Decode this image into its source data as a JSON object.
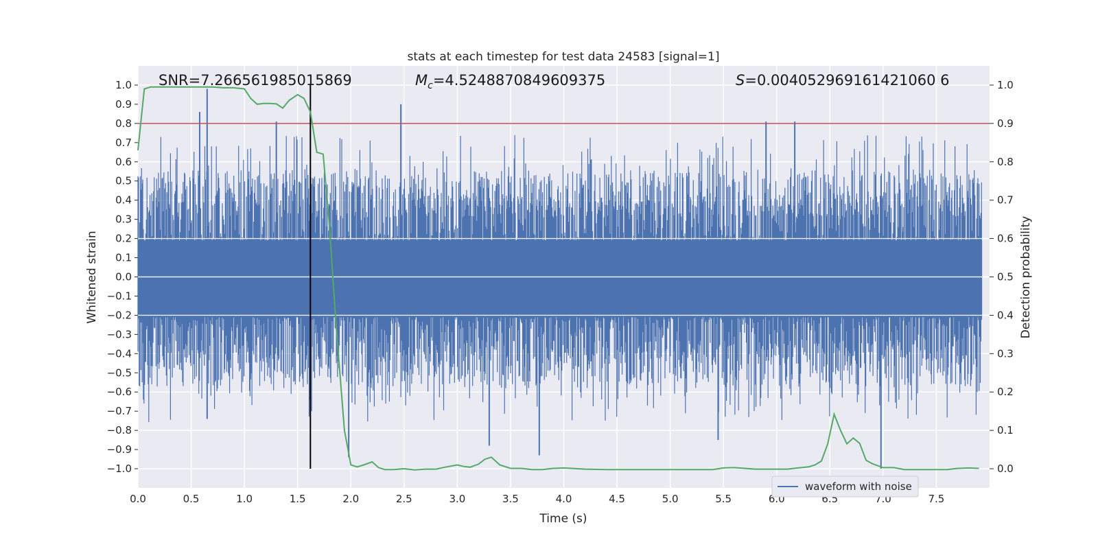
{
  "chart_data": {
    "type": "line",
    "title": "stats at each timestep for test data 24583 [signal=1]",
    "xlabel": "Time (s)",
    "ylabel": "Whitened strain",
    "y2label": "Detection probability",
    "xlim": [
      0.0,
      8.0
    ],
    "ylim": [
      -1.1,
      1.1
    ],
    "y2lim": [
      -0.05,
      1.05
    ],
    "xticks": [
      "0.0",
      "0.5",
      "1.0",
      "1.5",
      "2.0",
      "2.5",
      "3.0",
      "3.5",
      "4.0",
      "4.5",
      "5.0",
      "5.5",
      "6.0",
      "6.5",
      "7.0",
      "7.5"
    ],
    "yticks": [
      "1.0",
      "0.9",
      "0.8",
      "0.7",
      "0.6",
      "0.5",
      "0.4",
      "0.3",
      "0.2",
      "0.1",
      "0.0",
      "−0.1",
      "−0.2",
      "−0.3",
      "−0.4",
      "−0.5",
      "−0.6",
      "−0.7",
      "−0.8",
      "−0.9",
      "−1.0"
    ],
    "y2ticks": [
      "1.0",
      "0.9",
      "0.8",
      "0.7",
      "0.6",
      "0.5",
      "0.4",
      "0.3",
      "0.2",
      "0.1",
      "0.0"
    ],
    "annotations": {
      "snr": "SNR=7.266561985015869",
      "mc_symbol": "M",
      "mc_sub": "c",
      "mc_value": "=4.5248870849609375",
      "s_symbol": "S",
      "s_value": "=0.004052969161421060 6"
    },
    "threshold": {
      "y2": 0.9,
      "color": "#c44e52"
    },
    "event_marker": {
      "x": 1.62,
      "ymin": -1.0,
      "ymax": 1.0,
      "color": "#000000"
    },
    "legend": {
      "label": "waveform with noise",
      "placement": "lower-right"
    },
    "waveform": {
      "name": "waveform with noise",
      "color": "#4c72b0",
      "band": [
        -0.21,
        0.19
      ],
      "spike_extent": [
        -1.0,
        0.98
      ],
      "notable_peaks": [
        {
          "t": 0.65,
          "v": 0.98
        },
        {
          "t": 0.58,
          "v": 0.86
        },
        {
          "t": 2.47,
          "v": 0.9
        },
        {
          "t": 5.9,
          "v": 0.81
        },
        {
          "t": 6.17,
          "v": 0.81
        },
        {
          "t": 1.3,
          "v": 0.81
        },
        {
          "t": 0.65,
          "v": -0.74
        },
        {
          "t": 1.98,
          "v": -0.94
        },
        {
          "t": 3.77,
          "v": -0.93
        },
        {
          "t": 6.98,
          "v": -1.0
        },
        {
          "t": 3.3,
          "v": -0.88
        },
        {
          "t": 5.45,
          "v": -0.85
        }
      ]
    },
    "detection_probability": {
      "name": "detection probability",
      "color": "#55a868",
      "x": [
        0.0,
        0.06,
        0.12,
        0.2,
        0.3,
        0.4,
        0.5,
        0.6,
        0.7,
        0.8,
        0.9,
        1.0,
        1.06,
        1.12,
        1.18,
        1.24,
        1.3,
        1.36,
        1.42,
        1.5,
        1.56,
        1.62,
        1.68,
        1.74,
        1.8,
        1.86,
        1.94,
        2.0,
        2.06,
        2.12,
        2.2,
        2.26,
        2.32,
        2.4,
        2.5,
        2.6,
        2.7,
        2.8,
        2.9,
        3.0,
        3.06,
        3.12,
        3.2,
        3.26,
        3.32,
        3.4,
        3.5,
        3.6,
        3.7,
        3.8,
        3.9,
        4.0,
        4.2,
        4.4,
        4.6,
        4.8,
        5.0,
        5.2,
        5.4,
        5.5,
        5.6,
        5.8,
        6.0,
        6.1,
        6.2,
        6.3,
        6.36,
        6.42,
        6.48,
        6.54,
        6.6,
        6.66,
        6.72,
        6.78,
        6.84,
        6.9,
        7.0,
        7.1,
        7.2,
        7.3,
        7.4,
        7.5,
        7.6,
        7.7,
        7.8,
        7.9
      ],
      "y": [
        0.83,
        0.99,
        0.995,
        0.995,
        0.995,
        0.995,
        0.995,
        0.995,
        0.995,
        0.993,
        0.993,
        0.99,
        0.965,
        0.95,
        0.952,
        0.952,
        0.951,
        0.94,
        0.96,
        0.975,
        0.965,
        0.93,
        0.825,
        0.82,
        0.63,
        0.38,
        0.1,
        0.01,
        0.005,
        0.01,
        0.018,
        0.003,
        -0.002,
        -0.002,
        0.0,
        -0.003,
        -0.001,
        -0.001,
        0.005,
        0.01,
        0.006,
        0.004,
        0.012,
        0.025,
        0.03,
        0.01,
        0.001,
        0.001,
        -0.002,
        -0.002,
        0.001,
        0.002,
        -0.001,
        -0.002,
        -0.002,
        -0.002,
        -0.002,
        -0.002,
        -0.002,
        0.002,
        0.003,
        -0.001,
        -0.001,
        -0.001,
        0.002,
        0.005,
        0.01,
        0.02,
        0.065,
        0.142,
        0.1,
        0.065,
        0.08,
        0.066,
        0.022,
        0.013,
        0.003,
        0.003,
        -0.002,
        -0.002,
        -0.002,
        -0.002,
        -0.002,
        0.001,
        0.002,
        0.001
      ]
    }
  }
}
